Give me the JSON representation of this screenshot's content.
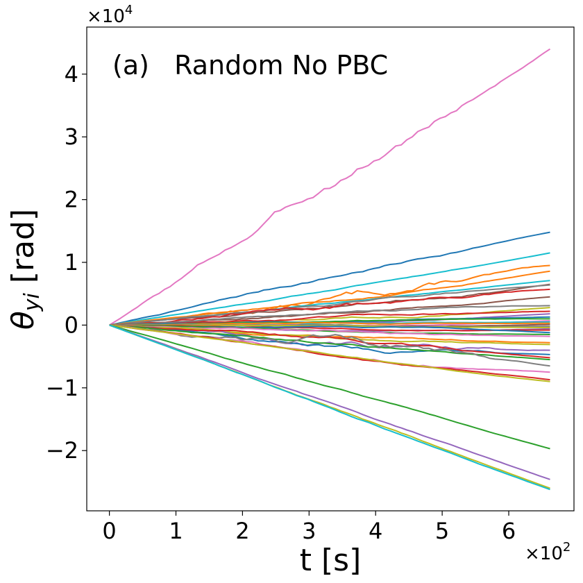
{
  "chart_data": {
    "type": "line",
    "title": "",
    "annotation": "(a)   Random No PBC",
    "xlabel": "t [s]",
    "ylabel_symbol": "θ",
    "ylabel_subscript": "yi",
    "ylabel_unit": " [rad]",
    "x_multiplier": "×10",
    "x_multiplier_exp": "2",
    "y_multiplier": "×10",
    "y_multiplier_exp": "4",
    "xlim": [
      -0.34,
      6.98
    ],
    "ylim": [
      -2.96,
      4.75
    ],
    "xticks": [
      0,
      1,
      2,
      3,
      4,
      5,
      6
    ],
    "xtick_labels": [
      "0",
      "1",
      "2",
      "3",
      "4",
      "5",
      "6"
    ],
    "yticks": [
      -2,
      -1,
      0,
      1,
      2,
      3,
      4
    ],
    "ytick_labels": [
      "−2",
      "−1",
      "0",
      "1",
      "2",
      "3",
      "4"
    ],
    "x_end": 6.62,
    "series": [
      {
        "name": "pink-top",
        "color": "#e377c2",
        "final": 4.4,
        "noise": 0.1,
        "seed": 3
      },
      {
        "name": "blue-1",
        "color": "#1f77b4",
        "final": 1.48,
        "noise": 0.03,
        "seed": 7
      },
      {
        "name": "cyan-1",
        "color": "#17becf",
        "final": 1.15,
        "noise": 0.01,
        "seed": 11
      },
      {
        "name": "orange-1",
        "color": "#ff7f0e",
        "final": 0.95,
        "noise": 0.08,
        "seed": 13
      },
      {
        "name": "orange-2",
        "color": "#ff7f0e",
        "final": 0.86,
        "noise": 0.02,
        "seed": 17
      },
      {
        "name": "cyan-2",
        "color": "#17becf",
        "final": 0.71,
        "noise": 0.01,
        "seed": 19
      },
      {
        "name": "brown-1",
        "color": "#8c564b",
        "final": 0.65,
        "noise": 0.03,
        "seed": 23
      },
      {
        "name": "gray-1",
        "color": "#7f7f7f",
        "final": 0.64,
        "noise": 0.02,
        "seed": 29
      },
      {
        "name": "red-1",
        "color": "#d62728",
        "final": 0.57,
        "noise": 0.05,
        "seed": 31
      },
      {
        "name": "brown-2",
        "color": "#8c564b",
        "final": 0.45,
        "noise": 0.02,
        "seed": 37
      },
      {
        "name": "gray-2",
        "color": "#7f7f7f",
        "final": 0.31,
        "noise": 0.02,
        "seed": 41
      },
      {
        "name": "olive-1",
        "color": "#bcbd22",
        "final": 0.28,
        "noise": 0.02,
        "seed": 43
      },
      {
        "name": "red-2",
        "color": "#d62728",
        "final": 0.22,
        "noise": 0.02,
        "seed": 47
      },
      {
        "name": "purple-1",
        "color": "#9467bd",
        "final": 0.18,
        "noise": 0.01,
        "seed": 53
      },
      {
        "name": "blue-2",
        "color": "#1f77b4",
        "final": 0.13,
        "noise": 0.01,
        "seed": 59
      },
      {
        "name": "green-1",
        "color": "#2ca02c",
        "final": 0.1,
        "noise": 0.01,
        "seed": 61
      },
      {
        "name": "pink-1",
        "color": "#e377c2",
        "final": 0.07,
        "noise": 0.01,
        "seed": 67
      },
      {
        "name": "cyan-3",
        "color": "#17becf",
        "final": 0.05,
        "noise": 0.01,
        "seed": 71
      },
      {
        "name": "orange-3",
        "color": "#ff7f0e",
        "final": 0.03,
        "noise": 0.01,
        "seed": 73
      },
      {
        "name": "brown-3",
        "color": "#8c564b",
        "final": 0.01,
        "noise": 0.01,
        "seed": 79
      },
      {
        "name": "gray-3",
        "color": "#7f7f7f",
        "final": -0.02,
        "noise": 0.01,
        "seed": 83
      },
      {
        "name": "olive-2",
        "color": "#bcbd22",
        "final": -0.04,
        "noise": 0.01,
        "seed": 89
      },
      {
        "name": "purple-2",
        "color": "#9467bd",
        "final": -0.06,
        "noise": 0.01,
        "seed": 97
      },
      {
        "name": "red-3",
        "color": "#d62728",
        "final": -0.08,
        "noise": 0.01,
        "seed": 101
      },
      {
        "name": "blue-3",
        "color": "#1f77b4",
        "final": -0.12,
        "noise": 0.01,
        "seed": 103
      },
      {
        "name": "green-2",
        "color": "#2ca02c",
        "final": -0.15,
        "noise": 0.01,
        "seed": 107
      },
      {
        "name": "pink-2",
        "color": "#e377c2",
        "final": -0.18,
        "noise": 0.02,
        "seed": 109
      },
      {
        "name": "orange-4",
        "color": "#ff7f0e",
        "final": -0.28,
        "noise": 0.02,
        "seed": 113
      },
      {
        "name": "olive-3",
        "color": "#bcbd22",
        "final": -0.31,
        "noise": 0.02,
        "seed": 127
      },
      {
        "name": "purple-3",
        "color": "#9467bd",
        "final": -0.4,
        "noise": 0.06,
        "seed": 131
      },
      {
        "name": "blue-4",
        "color": "#1f77b4",
        "final": -0.47,
        "noise": 0.04,
        "seed": 137
      },
      {
        "name": "red-4",
        "color": "#d62728",
        "final": -0.52,
        "noise": 0.03,
        "seed": 139
      },
      {
        "name": "green-3",
        "color": "#2ca02c",
        "final": -0.55,
        "noise": 0.02,
        "seed": 149
      },
      {
        "name": "gray-4",
        "color": "#7f7f7f",
        "final": -0.65,
        "noise": 0.08,
        "seed": 151
      },
      {
        "name": "pink-3",
        "color": "#e377c2",
        "final": -0.75,
        "noise": 0.03,
        "seed": 157
      },
      {
        "name": "red-5",
        "color": "#d62728",
        "final": -0.87,
        "noise": 0.02,
        "seed": 163
      },
      {
        "name": "olive-4",
        "color": "#bcbd22",
        "final": -0.9,
        "noise": 0.01,
        "seed": 167
      },
      {
        "name": "green-4",
        "color": "#2ca02c",
        "final": -1.97,
        "noise": 0.01,
        "seed": 173
      },
      {
        "name": "purple-4",
        "color": "#9467bd",
        "final": -2.46,
        "noise": 0.01,
        "seed": 179
      },
      {
        "name": "olive-5",
        "color": "#bcbd22",
        "final": -2.6,
        "noise": 0.01,
        "seed": 181
      },
      {
        "name": "cyan-4",
        "color": "#17becf",
        "final": -2.62,
        "noise": 0.01,
        "seed": 191
      }
    ]
  }
}
